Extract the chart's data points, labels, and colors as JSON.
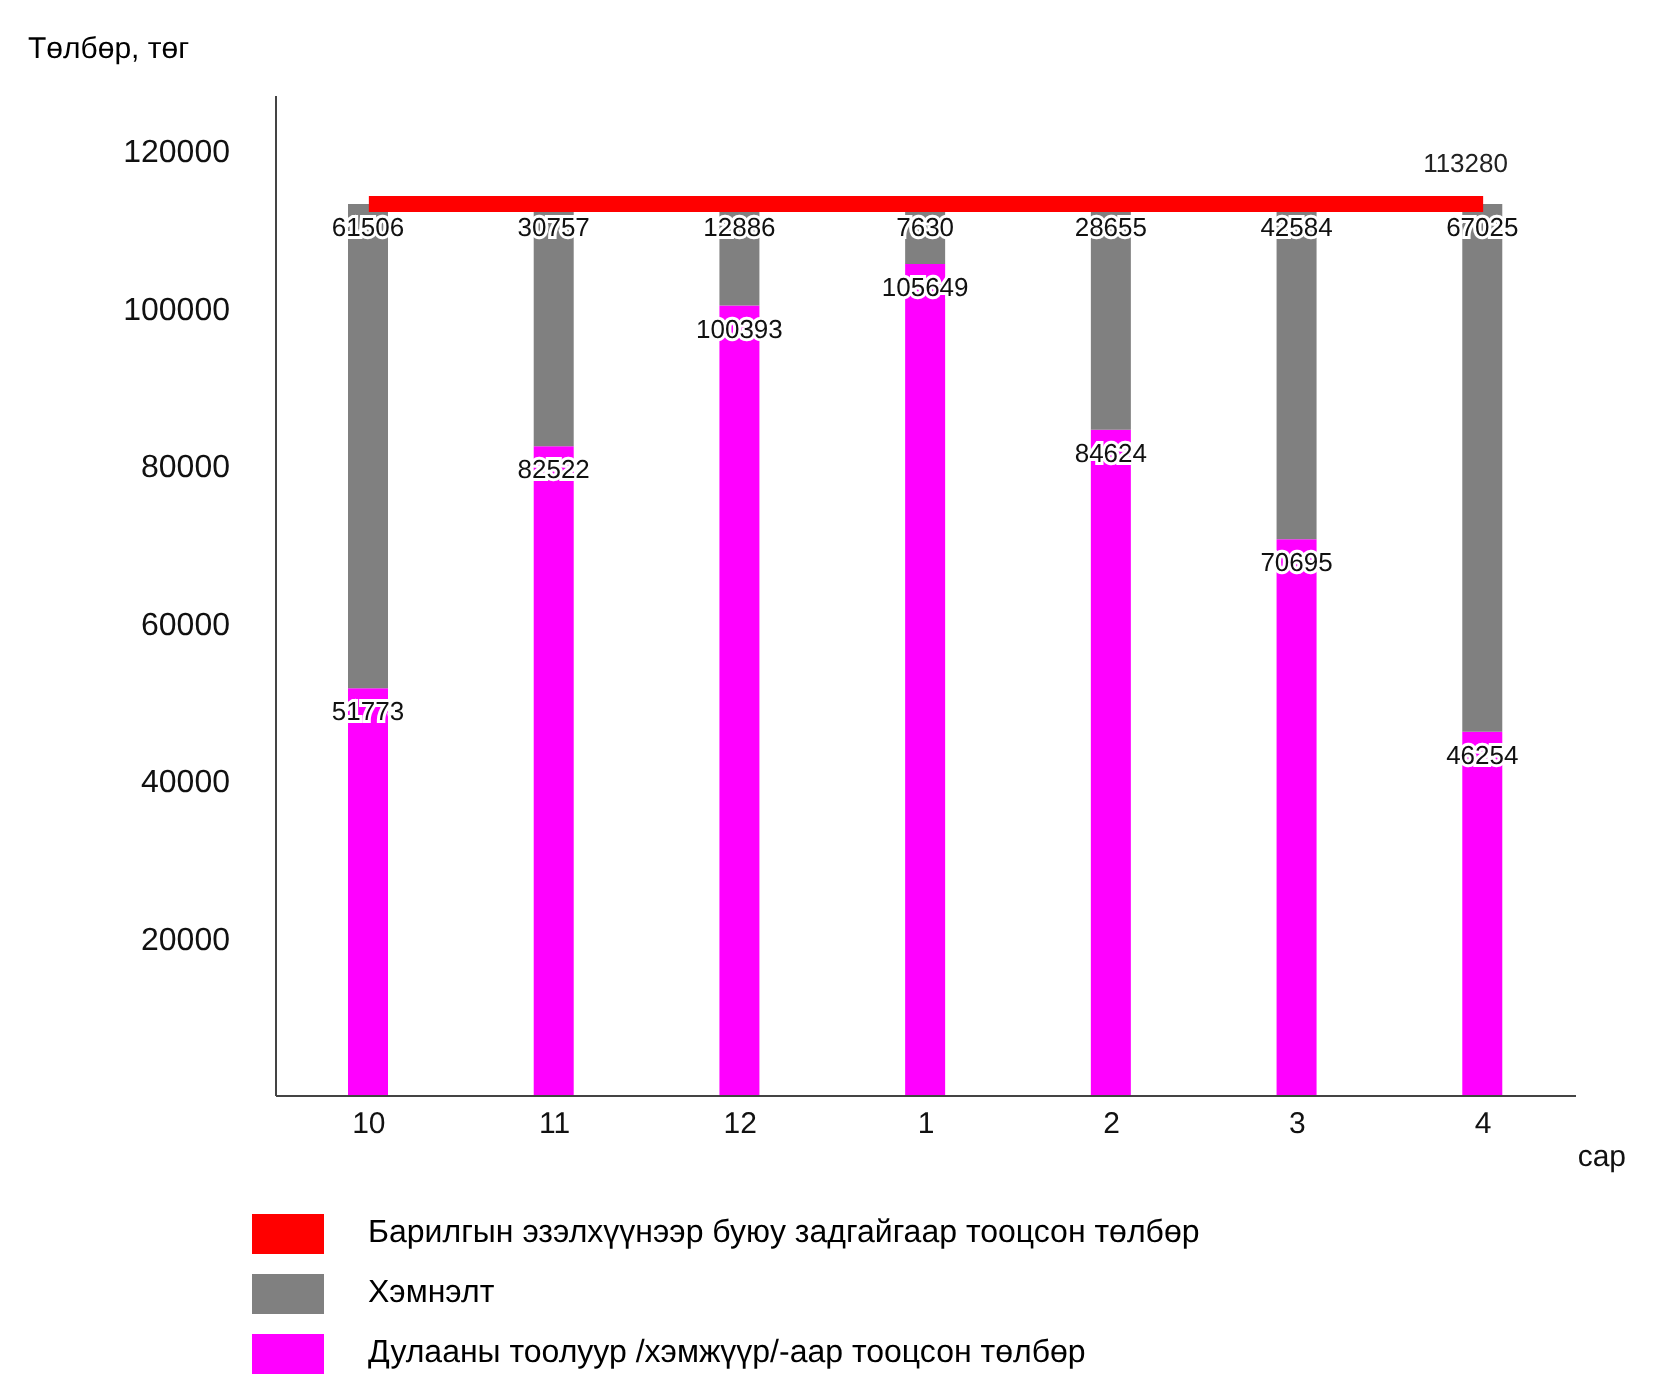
{
  "chart_data": {
    "type": "bar",
    "stacked": true,
    "xlabel": "сар",
    "ylabel": "Төлбөр, төг",
    "categories": [
      "10",
      "11",
      "12",
      "1",
      "2",
      "3",
      "4"
    ],
    "series": [
      {
        "name": "Дулааны тоолуур /хэмжүүр/-аар тооцсон төлбөр",
        "color": "#ff00ff",
        "values": [
          51773,
          82522,
          100393,
          105649,
          84624,
          70695,
          46254
        ]
      },
      {
        "name": "Хэмнэлт",
        "color": "#808080",
        "values": [
          61506,
          30757,
          12886,
          7630,
          28655,
          42584,
          67025
        ]
      },
      {
        "name": "Барилгын эзэлхүүнээр буюу задгайгаар тооцсон төлбөр",
        "type": "line",
        "color": "#ff0000",
        "values": [
          113280,
          113280,
          113280,
          113280,
          113280,
          113280,
          113280
        ],
        "value_labels": [
          null,
          null,
          null,
          null,
          null,
          null,
          "113280"
        ]
      }
    ],
    "ylim": [
      0,
      127000
    ],
    "yticks": [
      20000,
      40000,
      60000,
      80000,
      100000,
      120000
    ],
    "data_labels": true,
    "grid": false,
    "legend": "bottom"
  }
}
